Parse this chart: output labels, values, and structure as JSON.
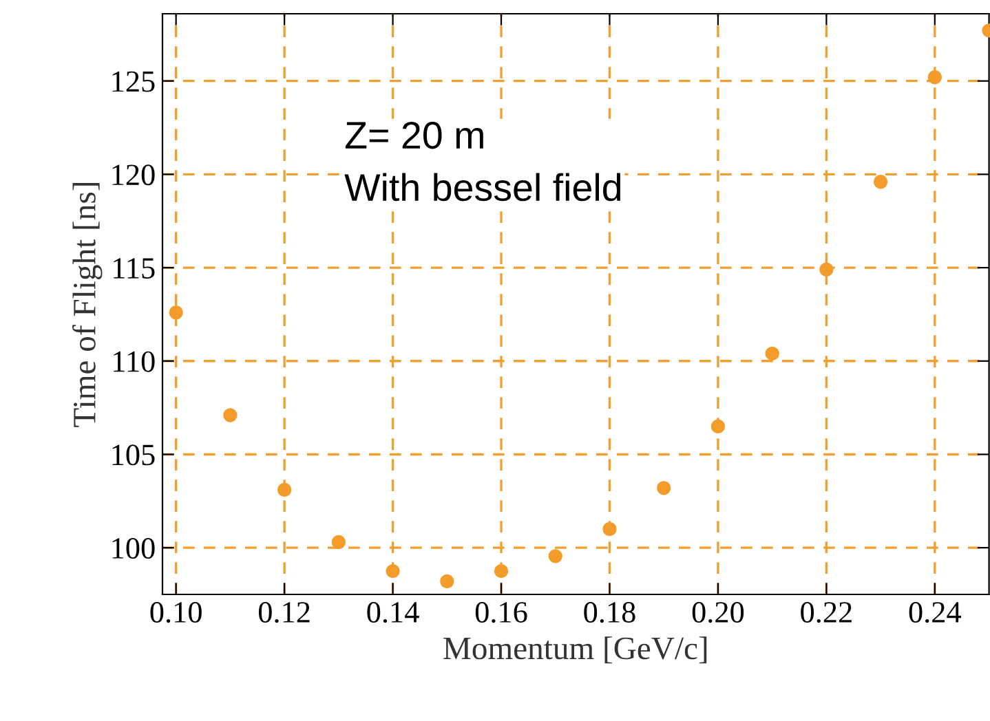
{
  "chart_data": {
    "type": "scatter",
    "xlabel": "Momentum [GeV/c]",
    "ylabel": "Time of Flight [ns]",
    "x": [
      0.1,
      0.11,
      0.12,
      0.13,
      0.14,
      0.15,
      0.16,
      0.17,
      0.18,
      0.19,
      0.2,
      0.21,
      0.22,
      0.23,
      0.24,
      0.25
    ],
    "series": [
      {
        "color": "#f39c2a",
        "values": [
          112.6,
          107.1,
          103.1,
          100.3,
          98.75,
          98.2,
          98.75,
          99.55,
          101.0,
          103.2,
          106.5,
          110.4,
          114.9,
          119.6,
          125.2,
          127.7
        ]
      }
    ],
    "xlim": [
      0.0975,
      0.25
    ],
    "ylim": [
      97.5,
      128.6
    ],
    "xticks": [
      {
        "value": 0.1,
        "label": "0.10"
      },
      {
        "value": 0.12,
        "label": "0.12"
      },
      {
        "value": 0.14,
        "label": "0.14"
      },
      {
        "value": 0.16,
        "label": "0.16"
      },
      {
        "value": 0.18,
        "label": "0.18"
      },
      {
        "value": 0.2,
        "label": "0.20"
      },
      {
        "value": 0.22,
        "label": "0.22"
      },
      {
        "value": 0.24,
        "label": "0.24"
      }
    ],
    "yticks": [
      100,
      105,
      110,
      115,
      120,
      125
    ],
    "grid": true,
    "marker": "circle",
    "annotations": [
      "Z= 20 m\nWith bessel field"
    ]
  }
}
